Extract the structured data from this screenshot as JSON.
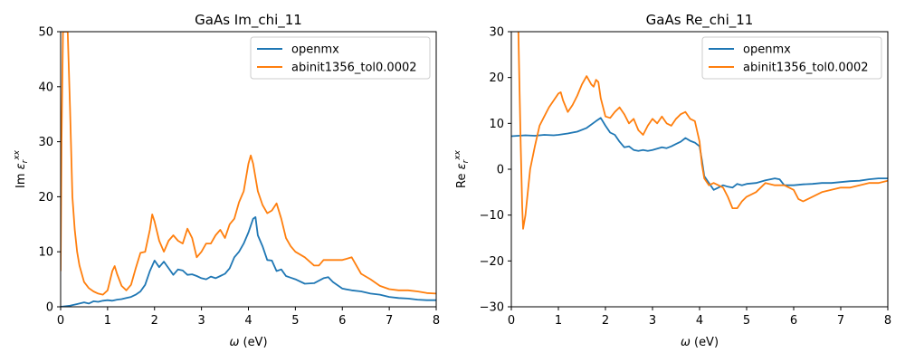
{
  "colors": {
    "openmx": "#1f77b4",
    "abinit": "#ff7f0e"
  },
  "chart_data": [
    {
      "type": "line",
      "title": "GaAs Im_chi_11",
      "xlabel_symbol": "ω",
      "xlabel_unit": " (eV)",
      "ylabel_prefix": "Im ",
      "ylabel_symbol": "ε",
      "ylabel_sub": "r",
      "ylabel_sup": "xx",
      "xlim": [
        0,
        8
      ],
      "ylim": [
        0,
        50
      ],
      "xticks": [
        0,
        1,
        2,
        3,
        4,
        5,
        6,
        7,
        8
      ],
      "yticks": [
        0,
        10,
        20,
        30,
        40,
        50
      ],
      "legend_position": "top-right",
      "series": [
        {
          "name": "openmx",
          "x": [
            0.0,
            0.2,
            0.35,
            0.5,
            0.6,
            0.7,
            0.8,
            0.9,
            1.0,
            1.1,
            1.2,
            1.3,
            1.4,
            1.5,
            1.6,
            1.7,
            1.8,
            1.9,
            2.0,
            2.1,
            2.2,
            2.3,
            2.4,
            2.5,
            2.6,
            2.7,
            2.8,
            2.9,
            3.0,
            3.1,
            3.2,
            3.3,
            3.4,
            3.5,
            3.6,
            3.7,
            3.8,
            3.9,
            4.0,
            4.1,
            4.15,
            4.2,
            4.3,
            4.4,
            4.5,
            4.6,
            4.7,
            4.8,
            4.9,
            5.0,
            5.2,
            5.4,
            5.6,
            5.7,
            5.8,
            6.0,
            6.2,
            6.4,
            6.6,
            6.8,
            7.0,
            7.2,
            7.4,
            7.6,
            7.8,
            8.0
          ],
          "y": [
            0.0,
            0.2,
            0.5,
            0.8,
            0.6,
            1.0,
            0.9,
            1.1,
            1.2,
            1.1,
            1.3,
            1.4,
            1.6,
            1.8,
            2.2,
            2.8,
            4.0,
            6.5,
            8.4,
            7.2,
            8.2,
            7.0,
            5.8,
            6.8,
            6.6,
            5.8,
            5.9,
            5.6,
            5.2,
            5.0,
            5.5,
            5.2,
            5.6,
            6.0,
            7.0,
            9.0,
            10.0,
            11.5,
            13.5,
            16.0,
            16.3,
            13.0,
            11.0,
            8.5,
            8.4,
            6.5,
            6.8,
            5.6,
            5.3,
            5.0,
            4.2,
            4.3,
            5.2,
            5.4,
            4.5,
            3.3,
            3.0,
            2.8,
            2.4,
            2.2,
            1.8,
            1.6,
            1.5,
            1.3,
            1.2,
            1.2
          ]
        },
        {
          "name": "abinit1356_tol0.0002",
          "x": [
            0.0,
            0.02,
            0.05,
            0.08,
            0.12,
            0.15,
            0.2,
            0.25,
            0.3,
            0.35,
            0.4,
            0.5,
            0.6,
            0.7,
            0.8,
            0.9,
            1.0,
            1.1,
            1.15,
            1.2,
            1.3,
            1.4,
            1.5,
            1.6,
            1.7,
            1.8,
            1.9,
            1.95,
            2.0,
            2.1,
            2.2,
            2.3,
            2.4,
            2.5,
            2.6,
            2.7,
            2.8,
            2.9,
            3.0,
            3.1,
            3.2,
            3.3,
            3.4,
            3.5,
            3.6,
            3.7,
            3.8,
            3.9,
            4.0,
            4.05,
            4.1,
            4.2,
            4.3,
            4.4,
            4.5,
            4.6,
            4.7,
            4.8,
            4.9,
            5.0,
            5.2,
            5.4,
            5.5,
            5.6,
            5.8,
            6.0,
            6.2,
            6.4,
            6.6,
            6.8,
            7.0,
            7.2,
            7.4,
            7.6,
            7.8,
            8.0
          ],
          "y": [
            6.5,
            30.0,
            50.0,
            50.0,
            50.0,
            50.0,
            36.0,
            20.0,
            14.0,
            10.0,
            7.5,
            4.5,
            3.4,
            2.8,
            2.4,
            2.2,
            3.0,
            6.5,
            7.4,
            6.0,
            3.8,
            3.0,
            4.0,
            7.0,
            9.8,
            10.0,
            14.0,
            16.8,
            15.5,
            12.0,
            10.0,
            12.0,
            13.0,
            12.0,
            11.5,
            14.2,
            12.5,
            9.0,
            10.0,
            11.5,
            11.5,
            13.0,
            14.0,
            12.5,
            15.0,
            16.0,
            19.0,
            21.0,
            26.0,
            27.5,
            26.0,
            21.0,
            18.5,
            17.0,
            17.5,
            18.8,
            16.0,
            12.5,
            11.0,
            10.0,
            9.0,
            7.5,
            7.5,
            8.5,
            8.5,
            8.5,
            9.0,
            6.0,
            5.0,
            3.8,
            3.2,
            3.0,
            3.0,
            2.8,
            2.5,
            2.4
          ]
        }
      ]
    },
    {
      "type": "line",
      "title": "GaAs Re_chi_11",
      "xlabel_symbol": "ω",
      "xlabel_unit": " (eV)",
      "ylabel_prefix": "Re ",
      "ylabel_symbol": "ε",
      "ylabel_sub": "r",
      "ylabel_sup": "xx",
      "xlim": [
        0,
        8
      ],
      "ylim": [
        -30,
        30
      ],
      "xticks": [
        0,
        1,
        2,
        3,
        4,
        5,
        6,
        7,
        8
      ],
      "yticks": [
        -30,
        -20,
        -10,
        0,
        10,
        20,
        30
      ],
      "legend_position": "top-right",
      "series": [
        {
          "name": "openmx",
          "x": [
            0.0,
            0.3,
            0.5,
            0.7,
            0.9,
            1.0,
            1.2,
            1.4,
            1.6,
            1.8,
            1.9,
            2.0,
            2.1,
            2.2,
            2.3,
            2.4,
            2.5,
            2.6,
            2.7,
            2.8,
            2.9,
            3.0,
            3.1,
            3.2,
            3.3,
            3.4,
            3.5,
            3.6,
            3.7,
            3.8,
            3.9,
            4.0,
            4.05,
            4.1,
            4.2,
            4.3,
            4.4,
            4.5,
            4.6,
            4.7,
            4.8,
            4.9,
            5.0,
            5.2,
            5.4,
            5.6,
            5.7,
            5.8,
            6.0,
            6.2,
            6.4,
            6.6,
            6.8,
            7.0,
            7.2,
            7.4,
            7.6,
            7.8,
            8.0
          ],
          "y": [
            7.2,
            7.4,
            7.3,
            7.5,
            7.4,
            7.5,
            7.8,
            8.2,
            9.0,
            10.5,
            11.2,
            9.5,
            8.0,
            7.5,
            6.0,
            4.8,
            5.0,
            4.2,
            4.0,
            4.2,
            4.0,
            4.2,
            4.5,
            4.8,
            4.6,
            5.0,
            5.5,
            6.0,
            6.8,
            6.2,
            5.8,
            5.0,
            2.0,
            -1.5,
            -3.0,
            -4.5,
            -4.0,
            -3.5,
            -3.8,
            -4.0,
            -3.2,
            -3.5,
            -3.2,
            -3.0,
            -2.4,
            -2.0,
            -2.2,
            -3.5,
            -3.5,
            -3.3,
            -3.2,
            -3.0,
            -3.0,
            -2.8,
            -2.6,
            -2.5,
            -2.2,
            -2.0,
            -2.0
          ]
        },
        {
          "name": "abinit1356_tol0.0002",
          "x": [
            0.15,
            0.17,
            0.2,
            0.23,
            0.25,
            0.3,
            0.35,
            0.4,
            0.5,
            0.6,
            0.7,
            0.8,
            0.9,
            1.0,
            1.05,
            1.1,
            1.2,
            1.3,
            1.4,
            1.5,
            1.6,
            1.7,
            1.75,
            1.8,
            1.85,
            1.9,
            2.0,
            2.1,
            2.2,
            2.3,
            2.4,
            2.5,
            2.6,
            2.7,
            2.8,
            2.9,
            3.0,
            3.1,
            3.2,
            3.3,
            3.4,
            3.5,
            3.6,
            3.7,
            3.8,
            3.9,
            4.0,
            4.05,
            4.1,
            4.2,
            4.3,
            4.4,
            4.5,
            4.6,
            4.7,
            4.8,
            4.9,
            5.0,
            5.2,
            5.4,
            5.6,
            5.8,
            6.0,
            6.1,
            6.2,
            6.4,
            6.6,
            6.8,
            7.0,
            7.2,
            7.4,
            7.6,
            7.8,
            8.0
          ],
          "y": [
            30.0,
            20.0,
            5.0,
            -8.0,
            -13.0,
            -10.0,
            -5.0,
            0.0,
            5.0,
            9.5,
            11.5,
            13.5,
            15.0,
            16.5,
            16.8,
            15.0,
            12.5,
            14.0,
            16.0,
            18.5,
            20.3,
            18.5,
            18.0,
            19.5,
            19.0,
            15.5,
            11.5,
            11.2,
            12.5,
            13.5,
            12.0,
            10.0,
            11.0,
            8.5,
            7.5,
            9.5,
            11.0,
            10.0,
            11.5,
            10.0,
            9.5,
            11.0,
            12.0,
            12.5,
            11.0,
            10.5,
            6.0,
            1.0,
            -2.0,
            -3.5,
            -3.0,
            -3.5,
            -4.0,
            -6.0,
            -8.5,
            -8.5,
            -7.0,
            -6.0,
            -5.0,
            -3.0,
            -3.5,
            -3.5,
            -4.5,
            -6.5,
            -7.0,
            -6.0,
            -5.0,
            -4.5,
            -4.0,
            -4.0,
            -3.5,
            -3.0,
            -3.0,
            -2.5
          ]
        }
      ]
    }
  ]
}
